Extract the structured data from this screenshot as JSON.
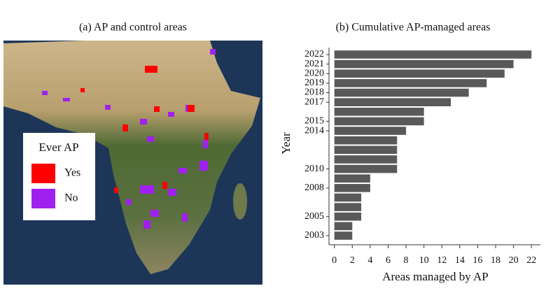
{
  "chart_data": [
    {
      "type": "map",
      "title": "(a) AP and control areas",
      "legend_title": "Ever AP",
      "legend": [
        {
          "name": "Yes",
          "color": "#ff0000"
        },
        {
          "name": "No",
          "color": "#a020f0"
        }
      ]
    },
    {
      "type": "hbar",
      "title": "(b) Cumulative AP-managed areas",
      "ylabel": "Year",
      "xlabel": "Areas managed by AP",
      "categories": [
        "2003",
        null,
        "2005",
        null,
        null,
        "2008",
        null,
        "2010",
        null,
        null,
        null,
        "2014",
        "2015",
        null,
        "2017",
        "2018",
        "2019",
        "2020",
        "2021",
        "2022"
      ],
      "values": [
        2,
        2,
        3,
        3,
        3,
        4,
        4,
        7,
        7,
        7,
        7,
        8,
        10,
        10,
        13,
        15,
        17,
        19,
        20,
        22
      ],
      "color": "#595959",
      "xlim": [
        -0.6,
        23
      ],
      "xticks": [
        0,
        2,
        4,
        6,
        8,
        10,
        12,
        14,
        16,
        18,
        20,
        22
      ]
    }
  ]
}
